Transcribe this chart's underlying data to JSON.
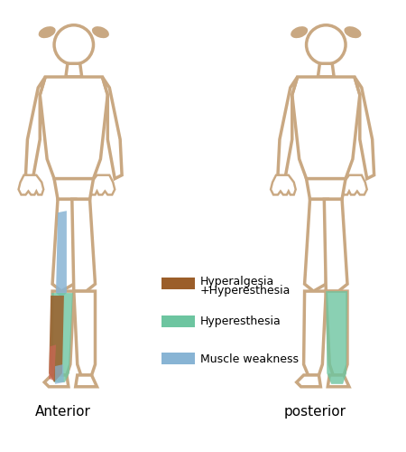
{
  "background_color": "#ffffff",
  "body_stroke_color": "#C9A882",
  "body_fill_color": "#ffffff",
  "hair_color": "#C9A882",
  "legend_items": [
    {
      "label": "Hyperalgesia\n+Hyperesthesia",
      "color": "#9B5E2A"
    },
    {
      "label": "Hyperesthesia",
      "color": "#6DC5A0"
    },
    {
      "label": "Muscle weakness",
      "color": "#88B4D4"
    }
  ],
  "anterior_label": "Anterior",
  "posterior_label": "posterior",
  "font_size_labels": 11,
  "font_size_legend": 9,
  "weak_blue": "#88B4D4",
  "hyper_green": "#6DC5A0",
  "hyper_brown": "#9B5E2A",
  "hyper_red": "#CC6655"
}
